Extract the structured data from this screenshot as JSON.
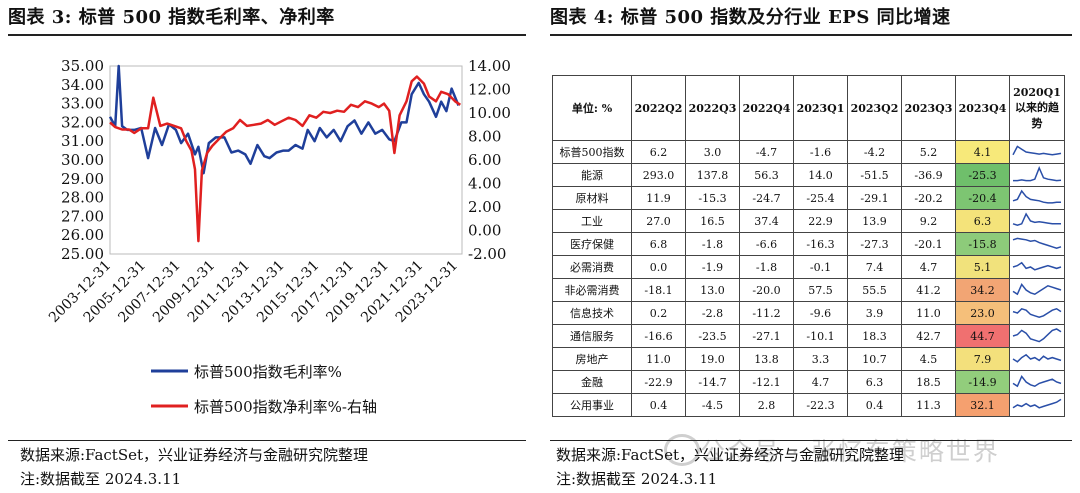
{
  "left": {
    "title": "图表 3:  标普 500 指数毛利率、净利率",
    "source": "数据来源:FactSet，兴业证券经济与金融研究院整理",
    "note": "注:数据截至 2024.3.11",
    "chart_data": {
      "type": "line",
      "x_ticks": [
        "2003-12-31",
        "2005-12-31",
        "2007-12-31",
        "2009-12-31",
        "2011-12-31",
        "2013-12-31",
        "2015-12-31",
        "2017-12-31",
        "2019-12-31",
        "2021-12-31",
        "2023-12-31"
      ],
      "left_ticks": [
        "35.00",
        "34.00",
        "33.00",
        "32.00",
        "31.00",
        "30.00",
        "29.00",
        "28.00",
        "27.00",
        "26.00",
        "25.00"
      ],
      "right_ticks": [
        "14.00",
        "12.00",
        "10.00",
        "8.00",
        "6.00",
        "4.00",
        "2.00",
        "0.00",
        "-2.00"
      ],
      "ylim_left": [
        25,
        35
      ],
      "ylim_right": [
        -2,
        14
      ],
      "xlim": [
        2003.9,
        2024.2
      ],
      "series": [
        {
          "name": "标普500指数毛利率%",
          "axis": "left",
          "color": "#1f3f9a",
          "x": [
            2003.9,
            2004.2,
            2004.4,
            2004.6,
            2004.9,
            2005.3,
            2005.7,
            2006.1,
            2006.5,
            2006.9,
            2007.3,
            2007.7,
            2008.0,
            2008.4,
            2008.8,
            2009.0,
            2009.3,
            2009.6,
            2010.0,
            2010.5,
            2010.9,
            2011.3,
            2011.7,
            2012.0,
            2012.4,
            2012.8,
            2013.1,
            2013.5,
            2013.9,
            2014.2,
            2014.6,
            2015.0,
            2015.3,
            2015.7,
            2016.0,
            2016.4,
            2016.8,
            2017.2,
            2017.6,
            2018.0,
            2018.4,
            2018.8,
            2019.2,
            2019.6,
            2020.0,
            2020.3,
            2020.7,
            2021.0,
            2021.3,
            2021.7,
            2022.0,
            2022.3,
            2022.7,
            2023.0,
            2023.3,
            2023.6,
            2024.0
          ],
          "y": [
            32.3,
            31.8,
            35.0,
            31.8,
            31.6,
            31.6,
            31.7,
            30.1,
            31.7,
            30.8,
            31.9,
            31.6,
            30.9,
            31.4,
            30.3,
            30.7,
            29.3,
            30.9,
            31.2,
            31.2,
            30.4,
            30.5,
            30.3,
            29.8,
            30.8,
            30.2,
            30.1,
            30.4,
            30.5,
            30.5,
            30.8,
            30.6,
            31.6,
            31.0,
            31.7,
            31.2,
            31.6,
            31.0,
            31.8,
            32.1,
            31.4,
            32.0,
            31.4,
            31.6,
            31.1,
            31.0,
            32.0,
            32.0,
            33.5,
            34.1,
            33.5,
            33.1,
            32.3,
            33.1,
            32.6,
            33.8,
            32.9
          ]
        },
        {
          "name": "标普500指数净利率%-右轴",
          "axis": "right",
          "color": "#e02020",
          "x": [
            2003.9,
            2004.2,
            2004.6,
            2005.0,
            2005.3,
            2005.7,
            2006.1,
            2006.4,
            2006.8,
            2007.2,
            2007.6,
            2008.0,
            2008.3,
            2008.6,
            2008.8,
            2009.0,
            2009.2,
            2009.5,
            2009.8,
            2010.2,
            2010.6,
            2011.0,
            2011.4,
            2011.8,
            2012.2,
            2012.6,
            2013.0,
            2013.4,
            2013.8,
            2014.2,
            2014.6,
            2015.0,
            2015.4,
            2015.8,
            2016.2,
            2016.6,
            2017.0,
            2017.4,
            2017.8,
            2018.2,
            2018.6,
            2019.0,
            2019.4,
            2019.7,
            2020.0,
            2020.3,
            2020.6,
            2021.0,
            2021.3,
            2021.6,
            2022.0,
            2022.3,
            2022.7,
            2023.0,
            2023.4,
            2023.8,
            2024.1
          ],
          "y": [
            9.2,
            8.8,
            8.6,
            8.6,
            8.3,
            8.7,
            8.7,
            11.3,
            8.9,
            9.1,
            8.9,
            8.7,
            7.6,
            6.8,
            5.2,
            -0.9,
            5.1,
            6.6,
            7.2,
            7.8,
            8.4,
            8.7,
            9.4,
            8.9,
            9.0,
            9.1,
            9.4,
            9.0,
            9.3,
            9.6,
            9.4,
            8.9,
            9.8,
            9.6,
            10.1,
            10.0,
            10.2,
            10.1,
            10.7,
            10.5,
            11.0,
            10.8,
            10.5,
            10.8,
            10.2,
            6.6,
            9.8,
            11.0,
            12.7,
            13.1,
            12.5,
            11.4,
            11.0,
            11.8,
            11.6,
            11.0,
            10.7
          ]
        }
      ]
    }
  },
  "right": {
    "title": "图表 4:  标普 500 指数及分行业 EPS 同比增速",
    "source": "数据来源:FactSet，兴业证券经济与金融研究院整理",
    "note": "注:数据截至 2024.3.11",
    "watermark": "公众号 · 张忆东策略世界",
    "headers": [
      "单位: %",
      "2022Q2",
      "2022Q3",
      "2022Q4",
      "2023Q1",
      "2023Q2",
      "2023Q3",
      "2023Q4",
      "2020Q1以来的趋势"
    ],
    "rows": [
      {
        "name": "标普500指数",
        "vals": [
          "6.2",
          "3.0",
          "-4.7",
          "-1.6",
          "-4.2",
          "5.2",
          "4.1"
        ],
        "color": "#f7e97a",
        "spark": [
          0.3,
          0.9,
          0.7,
          0.5,
          0.45,
          0.4,
          0.35,
          0.4,
          0.35,
          0.3,
          0.35,
          0.4
        ]
      },
      {
        "name": "能源",
        "vals": [
          "293.0",
          "137.8",
          "56.3",
          "14.0",
          "-51.5",
          "-36.9",
          "-25.3"
        ],
        "color": "#6fbf6b",
        "spark": [
          0.1,
          0.1,
          0.15,
          0.1,
          0.1,
          0.2,
          1.0,
          0.3,
          0.2,
          0.15,
          0.1,
          0.12
        ]
      },
      {
        "name": "原材料",
        "vals": [
          "11.9",
          "-15.3",
          "-24.7",
          "-25.4",
          "-29.1",
          "-20.2",
          "-20.4"
        ],
        "color": "#7dc572",
        "spark": [
          0.3,
          0.4,
          1.0,
          0.6,
          0.4,
          0.35,
          0.3,
          0.2,
          0.15,
          0.15,
          0.2,
          0.2
        ]
      },
      {
        "name": "工业",
        "vals": [
          "27.0",
          "16.5",
          "37.4",
          "22.9",
          "13.9",
          "9.2",
          "6.3"
        ],
        "color": "#f4e37a",
        "spark": [
          0.3,
          0.2,
          0.3,
          1.0,
          0.5,
          0.4,
          0.45,
          0.4,
          0.35,
          0.3,
          0.3,
          0.3
        ]
      },
      {
        "name": "医疗保健",
        "vals": [
          "6.8",
          "-1.8",
          "-6.6",
          "-16.3",
          "-27.3",
          "-20.1",
          "-15.8"
        ],
        "color": "#8dcb7a",
        "spark": [
          0.8,
          0.9,
          0.85,
          0.8,
          0.7,
          0.75,
          0.6,
          0.5,
          0.4,
          0.3,
          0.2,
          0.3
        ]
      },
      {
        "name": "必需消费",
        "vals": [
          "0.0",
          "-1.9",
          "-1.8",
          "-0.1",
          "7.4",
          "4.7",
          "5.1"
        ],
        "color": "#f1e27c",
        "spark": [
          0.5,
          0.6,
          0.8,
          0.4,
          0.5,
          0.3,
          0.4,
          0.5,
          0.6,
          0.5,
          0.4,
          0.5
        ]
      },
      {
        "name": "非必需消费",
        "vals": [
          "-18.1",
          "13.0",
          "-20.0",
          "57.5",
          "55.5",
          "41.2",
          "34.2"
        ],
        "color": "#f2a574",
        "spark": [
          0.4,
          0.2,
          0.9,
          0.5,
          0.3,
          0.2,
          0.4,
          0.6,
          0.8,
          0.7,
          0.6,
          0.5
        ]
      },
      {
        "name": "信息技术",
        "vals": [
          "0.2",
          "-2.8",
          "-11.2",
          "-9.6",
          "3.9",
          "11.0",
          "23.0"
        ],
        "color": "#f5bf7a",
        "spark": [
          0.6,
          0.5,
          0.8,
          0.7,
          0.4,
          0.3,
          0.2,
          0.3,
          0.5,
          0.7,
          0.8,
          0.6
        ]
      },
      {
        "name": "通信服务",
        "vals": [
          "-16.6",
          "-23.5",
          "-27.1",
          "-10.1",
          "18.3",
          "42.7",
          "44.7"
        ],
        "color": "#f07070",
        "spark": [
          0.5,
          0.6,
          0.9,
          0.7,
          0.3,
          0.2,
          0.1,
          0.3,
          0.6,
          0.9,
          1.0,
          0.8
        ]
      },
      {
        "name": "房地产",
        "vals": [
          "11.0",
          "19.0",
          "13.8",
          "3.3",
          "10.7",
          "4.5",
          "7.9"
        ],
        "color": "#f3e07c",
        "spark": [
          0.5,
          0.3,
          0.6,
          0.8,
          0.5,
          0.6,
          0.4,
          0.7,
          0.5,
          0.6,
          0.5,
          0.4
        ]
      },
      {
        "name": "金融",
        "vals": [
          "-22.9",
          "-14.7",
          "-12.1",
          "4.7",
          "6.3",
          "18.5",
          "-14.9"
        ],
        "color": "#92cd7c",
        "spark": [
          0.4,
          0.2,
          0.9,
          0.5,
          0.3,
          0.2,
          0.4,
          0.5,
          0.6,
          0.7,
          0.5,
          0.4
        ]
      },
      {
        "name": "公用事业",
        "vals": [
          "0.4",
          "-4.5",
          "2.8",
          "-22.3",
          "0.4",
          "11.3",
          "32.1"
        ],
        "color": "#f5a06f",
        "spark": [
          0.3,
          0.5,
          0.4,
          0.6,
          0.4,
          0.5,
          0.3,
          0.4,
          0.5,
          0.6,
          0.7,
          0.9
        ]
      }
    ]
  }
}
